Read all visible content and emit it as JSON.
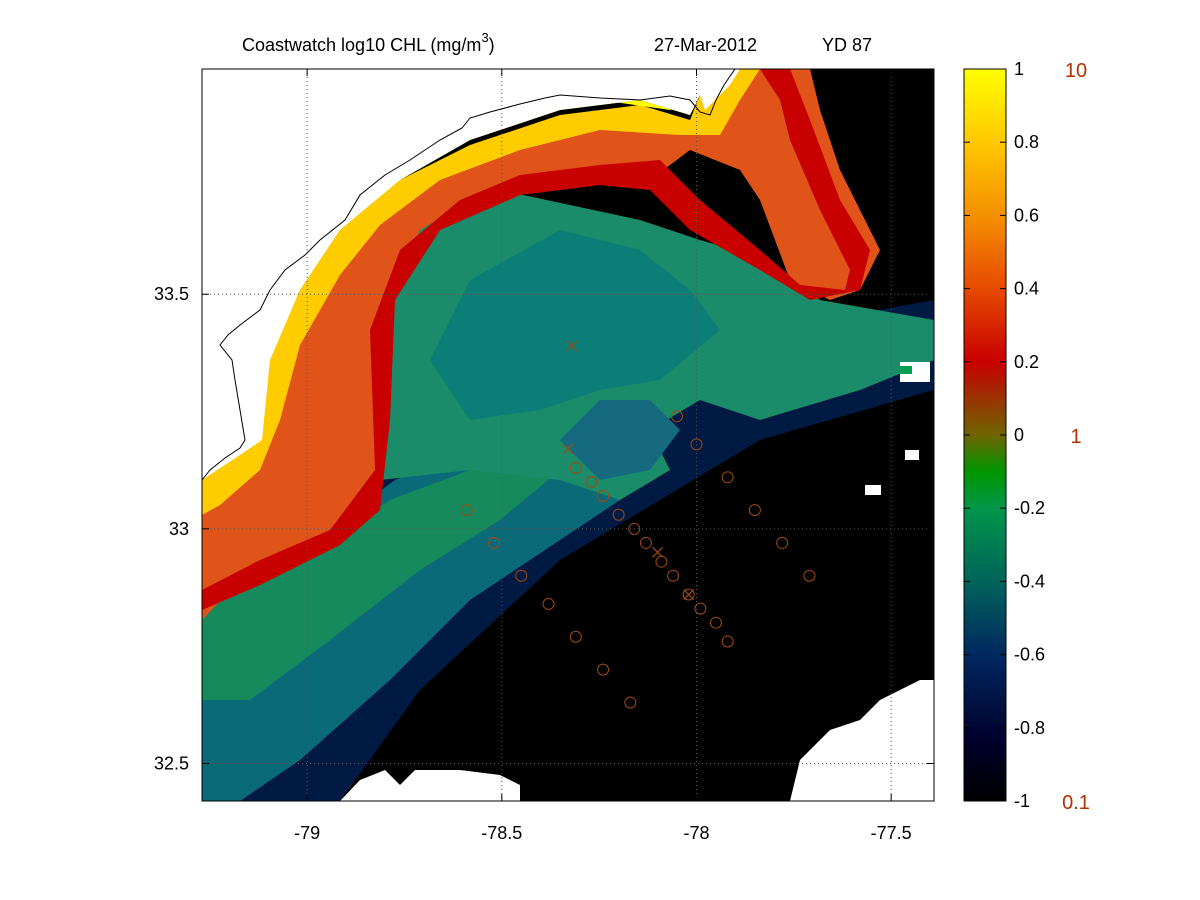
{
  "chart_data": {
    "type": "heatmap",
    "title": {
      "main": "Coastwatch  log10  CHL (mg/m",
      "sup": "3",
      "close": ")",
      "date": "27-Mar-2012",
      "yearday": "YD 87"
    },
    "xlim": [
      -79.27,
      -77.39
    ],
    "ylim": [
      32.42,
      33.98
    ],
    "x_ticks": [
      -79,
      -78.5,
      -78,
      -77.5
    ],
    "x_tick_labels": [
      "-79",
      "-78.5",
      "-78",
      "-77.5"
    ],
    "y_ticks": [
      32.5,
      33,
      33.5
    ],
    "y_tick_labels": [
      "32.5",
      "33",
      "33.5"
    ],
    "grid": "dotted",
    "colorbar": {
      "range": [
        -1,
        1
      ],
      "ticks": [
        1,
        0.8,
        0.6,
        0.4,
        0.2,
        0,
        -0.2,
        -0.4,
        -0.6,
        -0.8,
        -1
      ],
      "tick_labels": [
        "1",
        "0.8",
        "0.6",
        "0.4",
        "0.2",
        "0",
        "-0.2",
        "-0.4",
        "-0.6",
        "-0.8",
        "-1"
      ],
      "linear_labels": [
        {
          "value": 1,
          "label": "10"
        },
        {
          "value": 0,
          "label": "1"
        },
        {
          "value": -1,
          "label": "0.1"
        }
      ],
      "colors": [
        "#000000",
        "#00003c",
        "#003c64",
        "#009646",
        "#008c00",
        "#785a00",
        "#c80000",
        "#f05a00",
        "#ffaa00",
        "#ffff00"
      ]
    },
    "station_color": "#a04a10",
    "stations_circle": [
      [
        -78.59,
        33.04
      ],
      [
        -78.52,
        32.97
      ],
      [
        -78.45,
        32.9
      ],
      [
        -78.38,
        32.84
      ],
      [
        -78.31,
        32.77
      ],
      [
        -78.24,
        32.7
      ],
      [
        -78.17,
        32.63
      ],
      [
        -78.05,
        33.24
      ],
      [
        -78.0,
        33.18
      ],
      [
        -77.92,
        33.11
      ],
      [
        -77.85,
        33.04
      ],
      [
        -77.78,
        32.97
      ],
      [
        -77.71,
        32.9
      ],
      [
        -78.31,
        33.13
      ],
      [
        -78.27,
        33.1
      ],
      [
        -78.24,
        33.07
      ],
      [
        -78.2,
        33.03
      ],
      [
        -78.16,
        33.0
      ],
      [
        -78.13,
        32.97
      ],
      [
        -78.09,
        32.93
      ],
      [
        -78.06,
        32.9
      ],
      [
        -78.02,
        32.86
      ],
      [
        -77.99,
        32.83
      ],
      [
        -77.95,
        32.8
      ],
      [
        -77.92,
        32.76
      ]
    ],
    "stations_cross": [
      [
        -78.33,
        33.17
      ],
      [
        -78.1,
        32.95
      ],
      [
        -78.02,
        32.86
      ],
      [
        -78.32,
        33.39
      ]
    ]
  }
}
